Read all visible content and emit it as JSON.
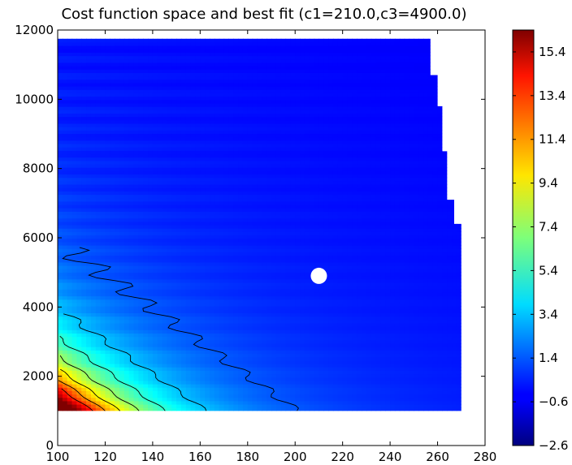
{
  "chart_data": {
    "type": "heatmap",
    "title": "Cost function space and best fit (c1=210.0,c3=4900.0)",
    "xlabel": "",
    "ylabel": "",
    "xlim": [
      100,
      280
    ],
    "ylim": [
      0,
      12000
    ],
    "x_ticks": [
      "100",
      "120",
      "140",
      "160",
      "180",
      "200",
      "220",
      "240",
      "260",
      "280"
    ],
    "y_ticks": [
      "0",
      "2000",
      "4000",
      "6000",
      "8000",
      "10000",
      "12000"
    ],
    "colorbar": {
      "colormap": "jet",
      "range": [
        -2.6,
        16.4
      ],
      "ticks": [
        "−2.6",
        "−0.6",
        "1.4",
        "3.4",
        "5.4",
        "7.4",
        "9.4",
        "11.4",
        "13.4",
        "15.4"
      ],
      "tick_values": [
        -2.6,
        -0.6,
        1.4,
        3.4,
        5.4,
        7.4,
        9.4,
        11.4,
        13.4,
        15.4
      ]
    },
    "data_extent": {
      "x": [
        100,
        270
      ],
      "y": [
        1000,
        11750
      ],
      "right_edge": [
        [
          1000,
          270
        ],
        [
          6400,
          270
        ],
        [
          6400,
          267
        ],
        [
          7100,
          267
        ],
        [
          7100,
          264
        ],
        [
          8500,
          264
        ],
        [
          8500,
          262
        ],
        [
          9800,
          262
        ],
        [
          9800,
          260
        ],
        [
          10700,
          260
        ],
        [
          10700,
          257
        ],
        [
          11750,
          257
        ]
      ]
    },
    "best_fit": {
      "x": 210,
      "y": 4900,
      "color": "#ffffff"
    },
    "contour_levels": [
      1.4,
      3.4,
      5.4,
      7.4,
      9.4,
      11.4,
      13.4
    ]
  }
}
